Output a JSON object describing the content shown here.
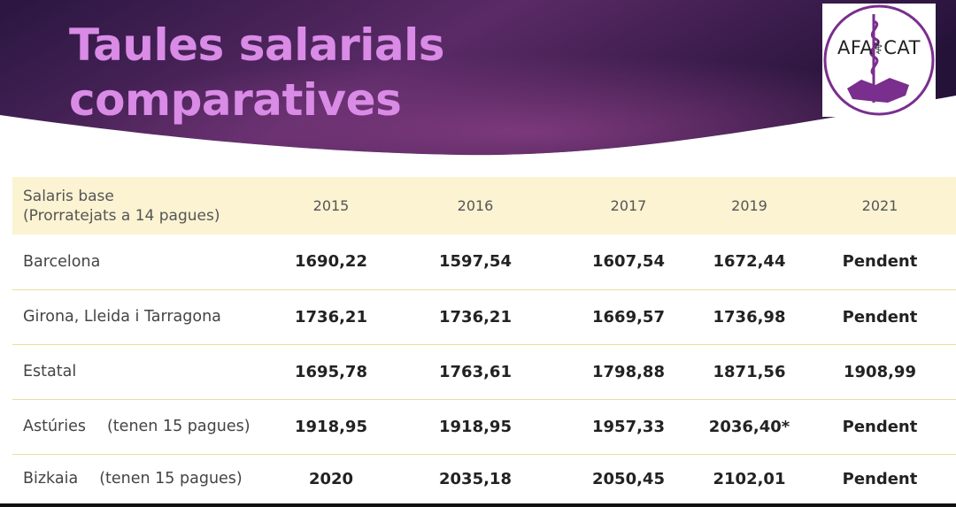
{
  "header": {
    "title_lines": [
      "Taules salarials",
      "comparatives"
    ],
    "logo_text": "AFA⚕CAT",
    "colors": {
      "banner_dark": "#241238",
      "banner_mid": "#5a2a64",
      "title": "#d98be6",
      "logo_purple": "#7a2e8e"
    }
  },
  "table": {
    "header_label_lines": [
      "Salaris base",
      "(Prorratejats a 14 pagues)"
    ],
    "years": [
      "2015",
      "2016",
      "2017",
      "2019",
      "2021"
    ],
    "rows": [
      {
        "region": "Barcelona",
        "note": "",
        "values": [
          "1690,22",
          "1597,54",
          "1607,54",
          "1672,44",
          "Pendent"
        ]
      },
      {
        "region": "Girona, Lleida i Tarragona",
        "note": "",
        "values": [
          "1736,21",
          "1736,21",
          "1669,57",
          "1736,98",
          "Pendent"
        ]
      },
      {
        "region": "Estatal",
        "note": "",
        "values": [
          "1695,78",
          "1763,61",
          "1798,88",
          "1871,56",
          "1908,99"
        ]
      },
      {
        "region": "Astúries",
        "note": "(tenen 15 pagues)",
        "values": [
          "1918,95",
          "1918,95",
          "1957,33",
          "2036,40*",
          "Pendent"
        ]
      },
      {
        "region": "Bizkaia",
        "note": "(tenen 15 pagues)",
        "values": [
          "2020",
          "2035,18",
          "2050,45",
          "2102,01",
          "Pendent"
        ]
      }
    ],
    "colors": {
      "header_bg": "#fbf3d2",
      "row_divider": "#ecdca0"
    }
  }
}
